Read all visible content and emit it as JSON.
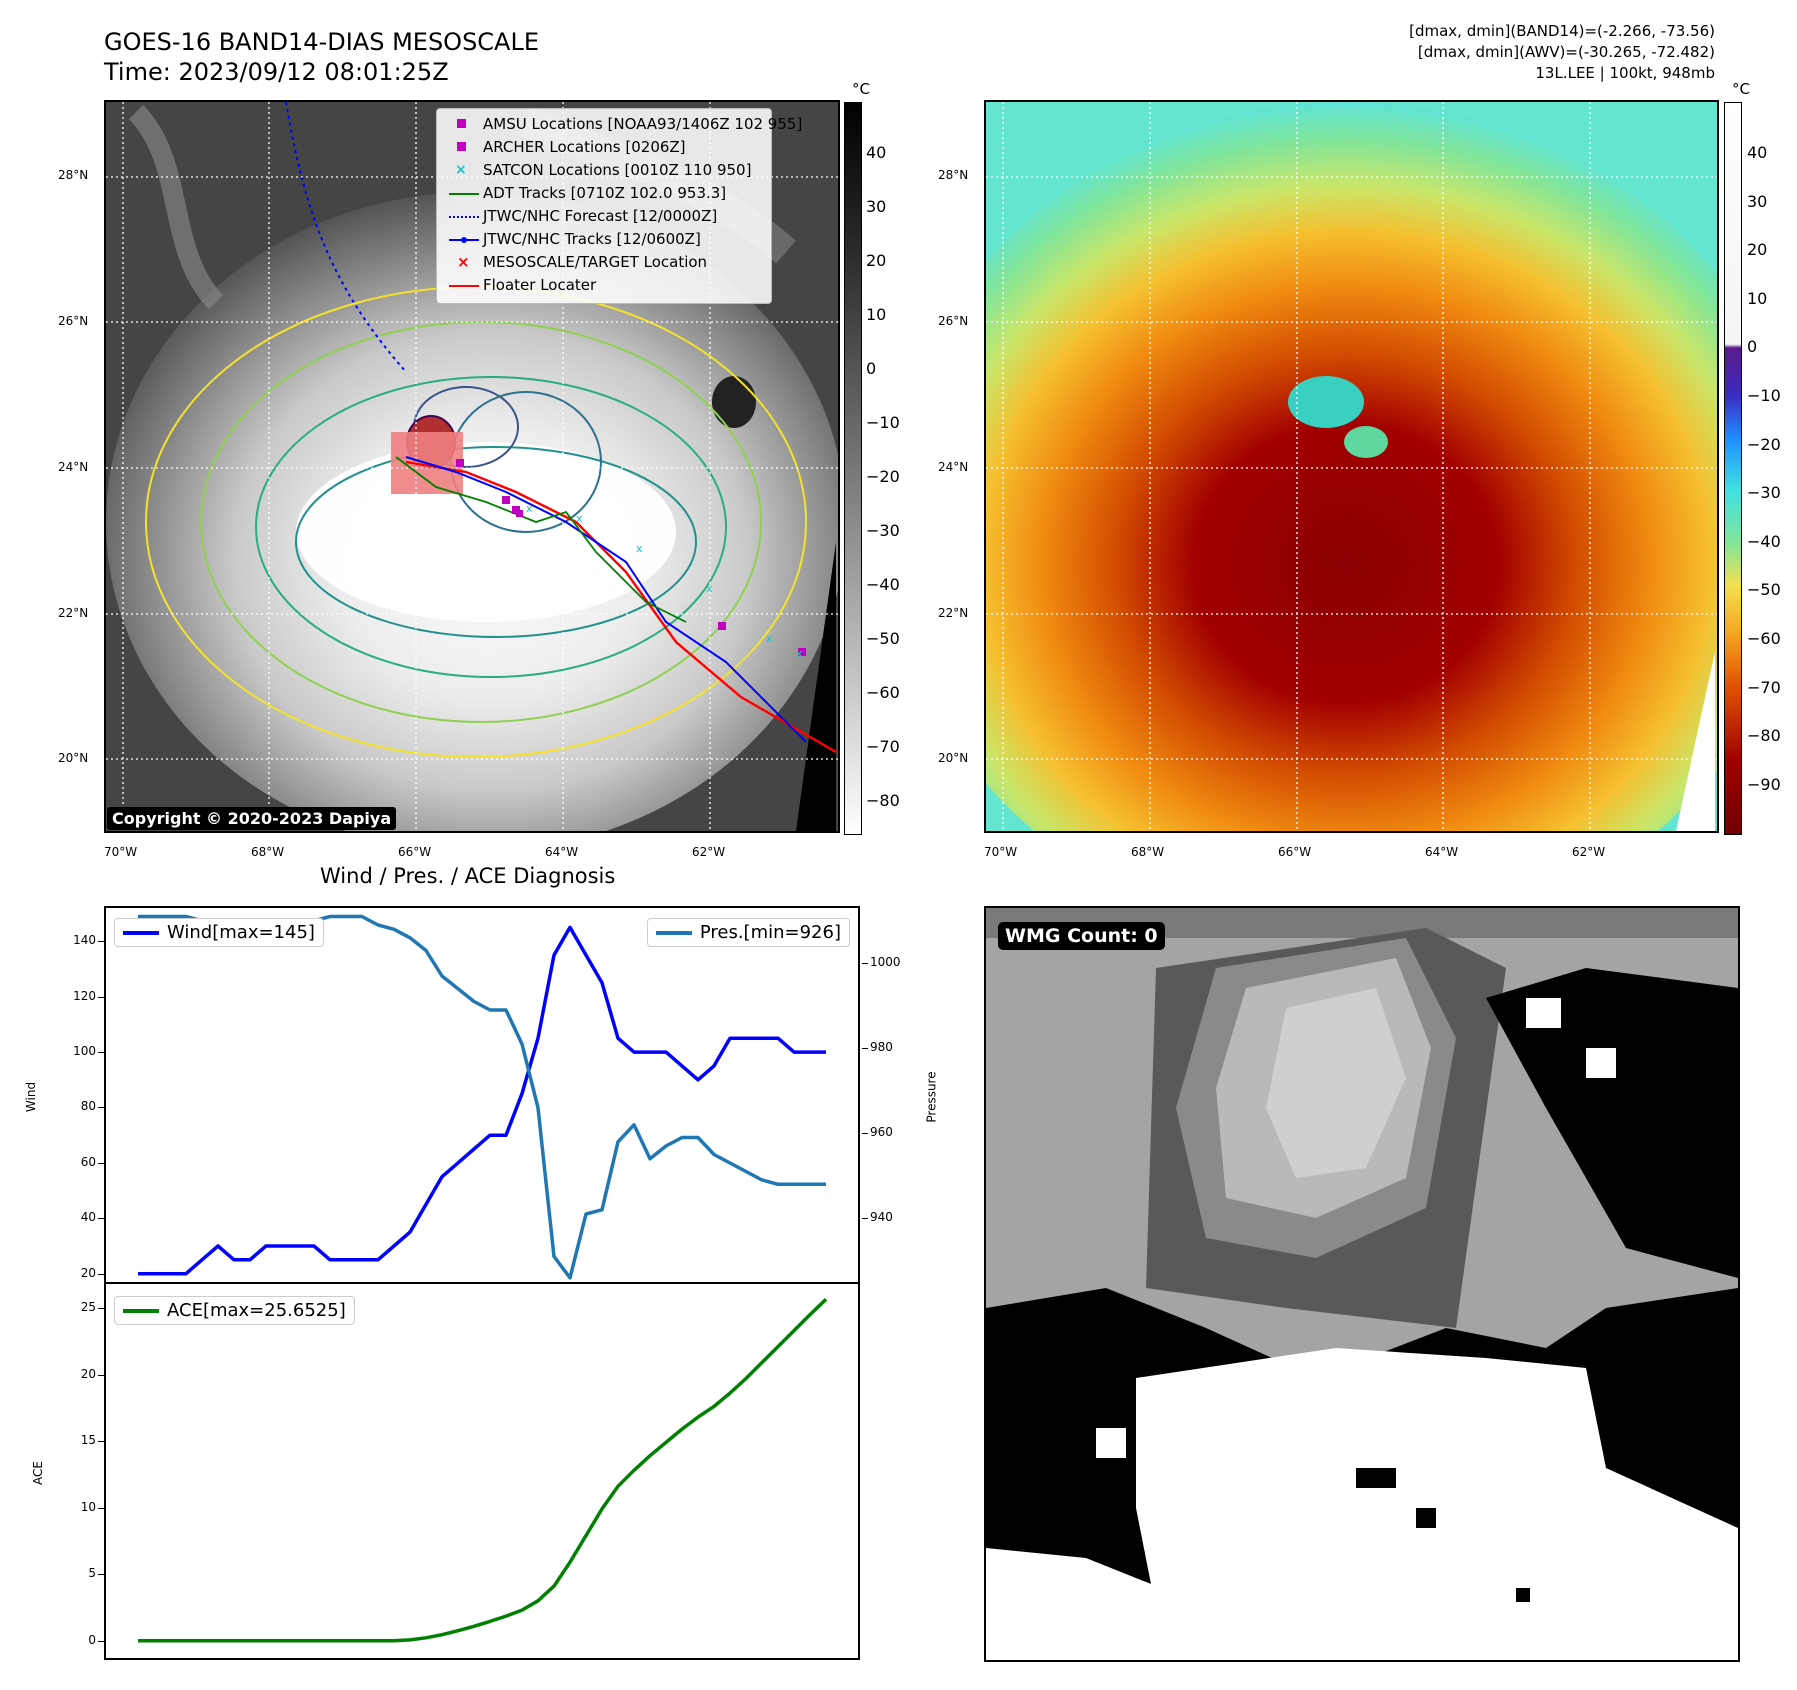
{
  "header": {
    "title_line1": "GOES-16 BAND14-DIAS MESOSCALE",
    "title_line2": "Time: 2023/09/12 08:01:25Z",
    "info_line1": "[dmax, dmin](BAND14)=(-2.266, -73.56)",
    "info_line2": "[dmax, dmin](AWV)=(-30.265, -72.482)",
    "info_line3": "13L.LEE | 100kt, 948mb"
  },
  "map_axes": {
    "lat_labels": [
      "28°N",
      "26°N",
      "24°N",
      "22°N",
      "20°N"
    ],
    "lon_labels": [
      "70°W",
      "68°W",
      "66°W",
      "64°W",
      "62°W"
    ]
  },
  "ir_panel": {
    "colorbar_unit": "°C",
    "colorbar_ticks": [
      "40",
      "30",
      "20",
      "10",
      "0",
      "−10",
      "−20",
      "−30",
      "−40",
      "−50",
      "−60",
      "−70",
      "−80"
    ],
    "copyright": "Copyright © 2020-2023 Dapiya",
    "legend": [
      {
        "label": "AMSU Locations [NOAA93/1406Z 102 955]",
        "symbol": "square",
        "color": "#c000c0"
      },
      {
        "label": "ARCHER Locations [0206Z]",
        "symbol": "square",
        "color": "#c000c0"
      },
      {
        "label": "SATCON Locations [0010Z 110 950]",
        "symbol": "x",
        "color": "#1fbfbf"
      },
      {
        "label": "ADT Tracks [0710Z 102.0 953.3]",
        "symbol": "line",
        "color": "#008000"
      },
      {
        "label": "JTWC/NHC Forecast [12/0000Z]",
        "symbol": "dotted",
        "color": "#0000ff"
      },
      {
        "label": "JTWC/NHC Tracks [12/0600Z]",
        "symbol": "line-dot",
        "color": "#0000ff"
      },
      {
        "label": "MESOSCALE/TARGET Location",
        "symbol": "x",
        "color": "#ff0000"
      },
      {
        "label": "Floater Locater",
        "symbol": "line",
        "color": "#ff0000"
      }
    ]
  },
  "wv_panel": {
    "colorbar_unit": "°C",
    "colorbar_ticks": [
      "40",
      "30",
      "20",
      "10",
      "0",
      "−10",
      "−20",
      "−30",
      "−40",
      "−50",
      "−60",
      "−70",
      "−80",
      "−90"
    ]
  },
  "wmg_panel": {
    "label": "WMG Count: 0"
  },
  "chart_data": [
    {
      "type": "line",
      "title": "Wind / Pres. / ACE Diagnosis",
      "ylabel": "Wind",
      "y2label": "Pressure",
      "ylim": [
        17,
        152
      ],
      "y2lim": [
        925,
        1013
      ],
      "yticks": [
        20,
        40,
        60,
        80,
        100,
        120,
        140
      ],
      "y2ticks": [
        940,
        960,
        980,
        1000
      ],
      "series": [
        {
          "name": "Wind[max=145]",
          "color": "#0000ff",
          "values": [
            20,
            20,
            20,
            20,
            25,
            30,
            25,
            25,
            30,
            30,
            30,
            30,
            25,
            25,
            25,
            25,
            30,
            35,
            45,
            55,
            60,
            65,
            70,
            70,
            85,
            105,
            135,
            145,
            135,
            125,
            105,
            100,
            100,
            100,
            95,
            90,
            95,
            105,
            105,
            105,
            105,
            100,
            100,
            100
          ]
        },
        {
          "name": "Pres.[min=926]",
          "color": "#1f77b4",
          "axis": "right",
          "values": [
            1011,
            1011,
            1011,
            1011,
            1010,
            1010,
            1010,
            1010,
            1010,
            1010,
            1010,
            1010,
            1011,
            1011,
            1011,
            1009,
            1008,
            1006,
            1003,
            997,
            994,
            991,
            989,
            989,
            981,
            966,
            931,
            926,
            941,
            942,
            958,
            962,
            954,
            957,
            959,
            959,
            955,
            953,
            951,
            949,
            948,
            948,
            948,
            948
          ]
        }
      ]
    },
    {
      "type": "line",
      "ylabel": "ACE",
      "ylim": [
        -1.3,
        26.8
      ],
      "yticks": [
        0,
        5,
        10,
        15,
        20,
        25
      ],
      "series": [
        {
          "name": "ACE[max=25.6525]",
          "color": "#008000",
          "values": [
            0,
            0,
            0,
            0,
            0,
            0,
            0,
            0,
            0,
            0,
            0,
            0,
            0,
            0,
            0,
            0,
            0,
            0.06,
            0.22,
            0.45,
            0.75,
            1.08,
            1.45,
            1.85,
            2.3,
            3.0,
            4.1,
            5.9,
            7.9,
            9.9,
            11.6,
            12.8,
            13.9,
            14.9,
            15.9,
            16.8,
            17.6,
            18.6,
            19.7,
            20.9,
            22.1,
            23.3,
            24.5,
            25.65
          ]
        }
      ]
    }
  ]
}
